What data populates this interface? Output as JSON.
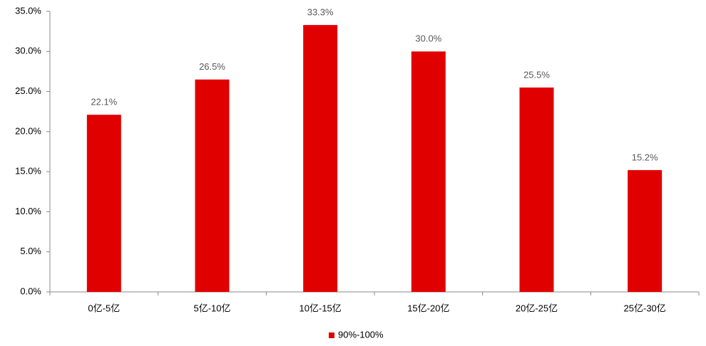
{
  "chart_data": {
    "type": "bar",
    "categories": [
      "0亿-5亿",
      "5亿-10亿",
      "10亿-15亿",
      "15亿-20亿",
      "20亿-25亿",
      "25亿-30亿"
    ],
    "series": [
      {
        "name": "90%-100%",
        "color": "#e00000",
        "values": [
          22.1,
          26.5,
          33.3,
          30.0,
          25.5,
          15.2
        ],
        "value_labels": [
          "22.1%",
          "26.5%",
          "33.3%",
          "30.0%",
          "25.5%",
          "15.2%"
        ]
      }
    ],
    "ylim": [
      0,
      35
    ],
    "yticks": [
      {
        "value": 0,
        "label": "0.0%"
      },
      {
        "value": 5,
        "label": "5.0%"
      },
      {
        "value": 10,
        "label": "10.0%"
      },
      {
        "value": 15,
        "label": "15.0%"
      },
      {
        "value": 20,
        "label": "20.0%"
      },
      {
        "value": 25,
        "label": "25.0%"
      },
      {
        "value": 30,
        "label": "30.0%"
      },
      {
        "value": 35,
        "label": "35.0%"
      }
    ],
    "grid": false,
    "legend": "bottom"
  }
}
